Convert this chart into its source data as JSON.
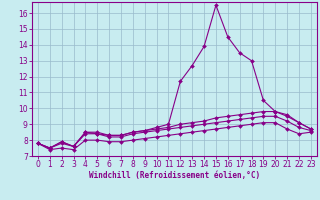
{
  "xlabel": "Windchill (Refroidissement éolien,°C)",
  "background_color": "#c8ecf0",
  "line_color": "#880088",
  "grid_color": "#99bbcc",
  "x_ticks": [
    0,
    1,
    2,
    3,
    4,
    5,
    6,
    7,
    8,
    9,
    10,
    11,
    12,
    13,
    14,
    15,
    16,
    17,
    18,
    19,
    20,
    21,
    22,
    23
  ],
  "y_ticks": [
    7,
    8,
    9,
    10,
    11,
    12,
    13,
    14,
    15,
    16
  ],
  "xlim": [
    0,
    23
  ],
  "ylim": [
    7,
    16.7
  ],
  "peak_y": [
    7.8,
    7.5,
    7.9,
    7.6,
    8.5,
    8.4,
    8.3,
    8.3,
    8.5,
    8.6,
    8.8,
    9.0,
    11.7,
    12.7,
    13.9,
    16.5,
    14.5,
    13.5,
    13.0,
    10.5,
    9.8,
    9.6,
    9.1,
    8.7
  ],
  "flat1_y": [
    7.8,
    7.5,
    7.9,
    7.6,
    8.5,
    8.5,
    8.3,
    8.3,
    8.5,
    8.6,
    8.7,
    8.8,
    9.0,
    9.1,
    9.2,
    9.4,
    9.5,
    9.6,
    9.7,
    9.8,
    9.8,
    9.5,
    9.1,
    8.7
  ],
  "flat2_y": [
    7.8,
    7.5,
    7.8,
    7.6,
    8.4,
    8.4,
    8.2,
    8.2,
    8.4,
    8.5,
    8.6,
    8.7,
    8.8,
    8.9,
    9.0,
    9.1,
    9.2,
    9.3,
    9.4,
    9.5,
    9.5,
    9.2,
    8.8,
    8.6
  ],
  "flat3_y": [
    7.8,
    7.4,
    7.5,
    7.4,
    8.0,
    8.0,
    7.9,
    7.9,
    8.0,
    8.1,
    8.2,
    8.3,
    8.4,
    8.5,
    8.6,
    8.7,
    8.8,
    8.9,
    9.0,
    9.1,
    9.1,
    8.7,
    8.4,
    8.5
  ]
}
